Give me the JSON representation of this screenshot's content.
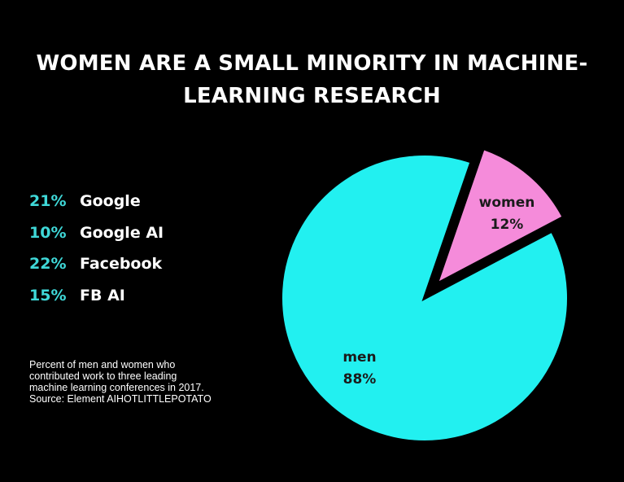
{
  "title_lines": [
    "WOMEN ARE A SMALL MINORITY IN MACHINE-",
    "LEARNING RESEARCH"
  ],
  "stats": [
    {
      "percent": "21%",
      "label": "Google"
    },
    {
      "percent": "10%",
      "label": "Google AI"
    },
    {
      "percent": "22%",
      "label": "Facebook"
    },
    {
      "percent": "15%",
      "label": "FB AI"
    }
  ],
  "caption_lines": [
    "Percent of men and women who",
    "contributed work to three leading",
    "machine learning conferences in 2017.",
    "Source: Element AIHOTLITTLEPOTATO"
  ],
  "colors": {
    "background": "#000000",
    "text": "#ffffff",
    "accent": "#3fd8d8",
    "men": "#22f0f0",
    "women": "#f58bda",
    "slice_text": "#1b1b1b"
  },
  "chart_data": {
    "type": "pie",
    "title": "WOMEN ARE A SMALL MINORITY IN MACHINE-LEARNING RESEARCH",
    "slices": [
      {
        "name": "women",
        "value": 12,
        "label": "12%",
        "exploded": true
      },
      {
        "name": "men",
        "value": 88,
        "label": "88%",
        "exploded": false
      }
    ]
  }
}
